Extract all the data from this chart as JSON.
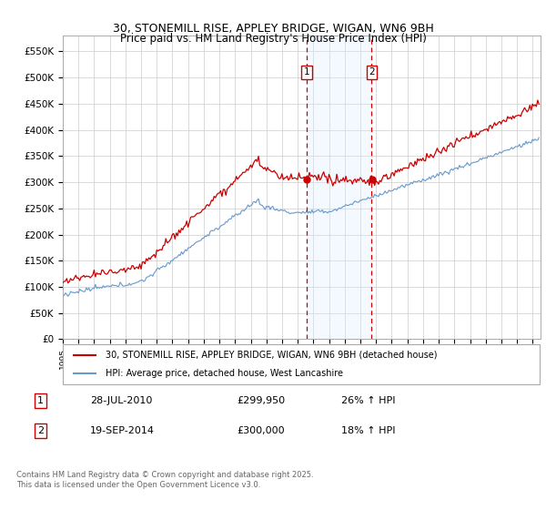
{
  "title_line1": "30, STONEMILL RISE, APPLEY BRIDGE, WIGAN, WN6 9BH",
  "title_line2": "Price paid vs. HM Land Registry's House Price Index (HPI)",
  "ylabel_ticks": [
    "£0",
    "£50K",
    "£100K",
    "£150K",
    "£200K",
    "£250K",
    "£300K",
    "£350K",
    "£400K",
    "£450K",
    "£500K",
    "£550K"
  ],
  "ytick_values": [
    0,
    50000,
    100000,
    150000,
    200000,
    250000,
    300000,
    350000,
    400000,
    450000,
    500000,
    550000
  ],
  "ylim": [
    0,
    580000
  ],
  "xlim_start": 1995.0,
  "xlim_end": 2025.5,
  "hpi_color": "#6699cc",
  "price_color": "#cc0000",
  "background_color": "#ffffff",
  "grid_color": "#cccccc",
  "marker1_x": 2010.57,
  "marker1_y": 299950,
  "marker2_x": 2014.72,
  "marker2_y": 300000,
  "vline_color": "#cc0000",
  "shade_color": "#ddeeff",
  "legend_line1": "30, STONEMILL RISE, APPLEY BRIDGE, WIGAN, WN6 9BH (detached house)",
  "legend_line2": "HPI: Average price, detached house, West Lancashire",
  "footnote": "Contains HM Land Registry data © Crown copyright and database right 2025.\nThis data is licensed under the Open Government Licence v3.0.",
  "xtick_years": [
    1995,
    1996,
    1997,
    1998,
    1999,
    2000,
    2001,
    2002,
    2003,
    2004,
    2005,
    2006,
    2007,
    2008,
    2009,
    2010,
    2011,
    2012,
    2013,
    2014,
    2015,
    2016,
    2017,
    2018,
    2019,
    2020,
    2021,
    2022,
    2023,
    2024,
    2025
  ],
  "ann1_date": "28-JUL-2010",
  "ann1_price": "£299,950",
  "ann1_hpi": "26% ↑ HPI",
  "ann2_date": "19-SEP-2014",
  "ann2_price": "£300,000",
  "ann2_hpi": "18% ↑ HPI"
}
